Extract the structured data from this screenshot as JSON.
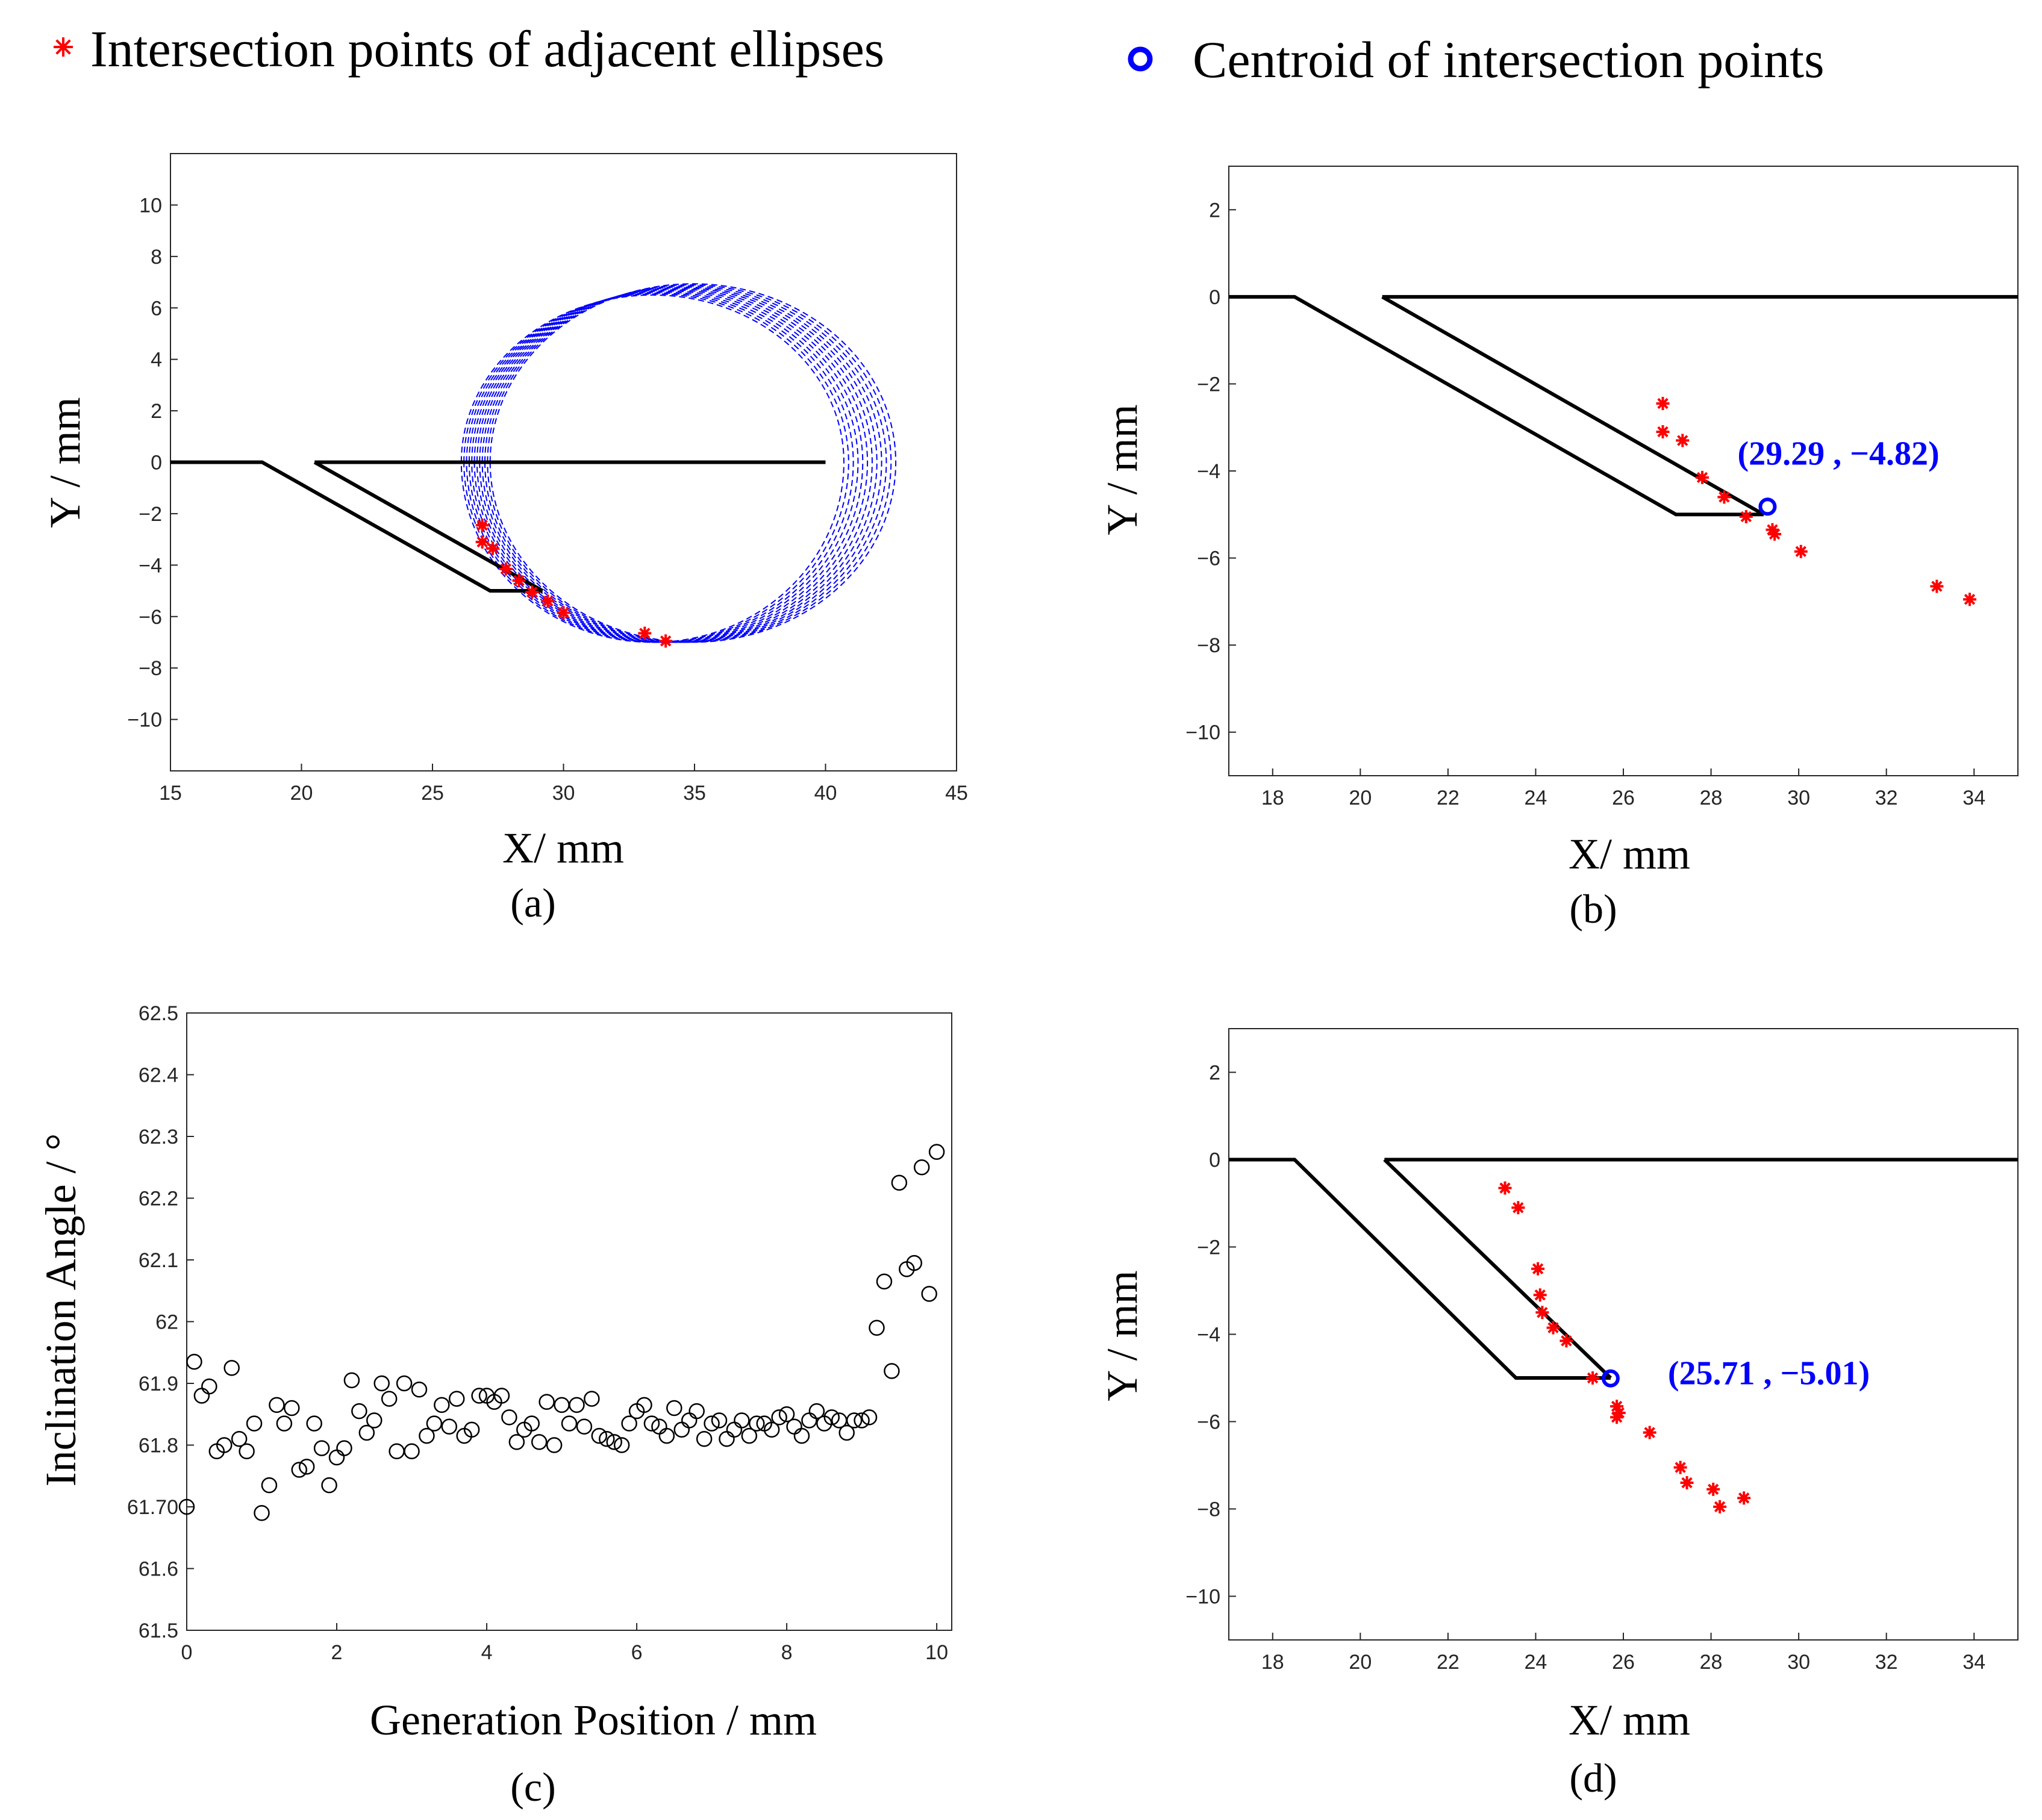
{
  "legend": {
    "intersections_label": "Intersection points of adjacent ellipses",
    "centroid_label": "Centroid of intersection points",
    "star_color": "#ff0000",
    "centroid_color": "#0000ff"
  },
  "chart_data": [
    {
      "id": "a",
      "type": "line",
      "caption": "(a)",
      "xlabel": "X/ mm",
      "ylabel": "Y / mm",
      "xlim": [
        15,
        45
      ],
      "ylim": [
        -12,
        12
      ],
      "xticks": [
        15,
        20,
        25,
        30,
        35,
        40,
        45
      ],
      "yticks": [
        -10,
        -8,
        -6,
        -4,
        -2,
        0,
        2,
        4,
        6,
        8,
        10
      ],
      "tool_outline": [
        [
          [
            15,
            0
          ],
          [
            18.5,
            0
          ],
          [
            27.2,
            -5
          ],
          [
            29.2,
            -5
          ]
        ],
        [
          [
            20.5,
            0
          ],
          [
            40,
            0
          ]
        ],
        [
          [
            20.5,
            0
          ],
          [
            29.2,
            -5
          ]
        ]
      ],
      "ellipses": {
        "count": 12,
        "center_x_start": 33.4,
        "center_x_step": 0.14,
        "center_y": 0,
        "rx_start": 7.3,
        "rx_step": 0.04,
        "ry_top_start": 6.5,
        "ry_top_step": 0.04,
        "ry_bottom": 7.0,
        "color": "#0000ff"
      },
      "intersection_points": [
        [
          26.9,
          -2.45
        ],
        [
          26.9,
          -3.1
        ],
        [
          27.3,
          -3.35
        ],
        [
          27.8,
          -4.15
        ],
        [
          28.3,
          -4.6
        ],
        [
          28.8,
          -5.05
        ],
        [
          29.4,
          -5.4
        ],
        [
          30.0,
          -5.85
        ],
        [
          33.1,
          -6.65
        ],
        [
          33.9,
          -6.95
        ]
      ]
    },
    {
      "id": "b",
      "type": "line",
      "caption": "(b)",
      "xlabel": "X/ mm",
      "ylabel": "Y / mm",
      "xlim": [
        17,
        35
      ],
      "ylim": [
        -11,
        3
      ],
      "xticks": [
        18,
        20,
        22,
        24,
        26,
        28,
        30,
        32,
        34
      ],
      "yticks": [
        -10,
        -8,
        -6,
        -4,
        -2,
        0,
        2
      ],
      "tool_outline": [
        [
          [
            17,
            0
          ],
          [
            18.5,
            0
          ],
          [
            27.2,
            -5
          ],
          [
            29.2,
            -5
          ]
        ],
        [
          [
            20.5,
            0
          ],
          [
            35,
            0
          ]
        ],
        [
          [
            20.5,
            0
          ],
          [
            29.2,
            -5
          ]
        ]
      ],
      "intersection_points": [
        [
          26.9,
          -2.45
        ],
        [
          26.9,
          -3.1
        ],
        [
          27.35,
          -3.3
        ],
        [
          27.8,
          -4.15
        ],
        [
          28.3,
          -4.6
        ],
        [
          28.8,
          -5.05
        ],
        [
          29.4,
          -5.35
        ],
        [
          29.45,
          -5.45
        ],
        [
          30.05,
          -5.85
        ],
        [
          33.15,
          -6.65
        ],
        [
          33.9,
          -6.95
        ]
      ],
      "centroid": [
        29.29,
        -4.82
      ],
      "centroid_label": "(29.29 , −4.82)"
    },
    {
      "id": "c",
      "type": "scatter",
      "caption": "(c)",
      "xlabel": "Generation Position / mm",
      "ylabel": "Inclination Angle / °",
      "xlim": [
        0,
        10.2
      ],
      "ylim": [
        61.5,
        62.5
      ],
      "xticks": [
        0,
        2,
        4,
        6,
        8,
        10
      ],
      "yticks": [
        61.5,
        61.6,
        61.7,
        61.8,
        61.9,
        62,
        62.1,
        62.2,
        62.3,
        62.4,
        62.5
      ],
      "ytick_labels": [
        "61.5",
        "61.6",
        "61.70",
        "61.8",
        "61.9",
        "62",
        "62.1",
        "62.2",
        "62.3",
        "62.4",
        "62.5"
      ],
      "x": [
        0.0,
        0.1,
        0.2,
        0.3,
        0.4,
        0.5,
        0.6,
        0.7,
        0.8,
        0.9,
        1.0,
        1.1,
        1.2,
        1.3,
        1.4,
        1.5,
        1.6,
        1.7,
        1.8,
        1.9,
        2.0,
        2.1,
        2.2,
        2.3,
        2.4,
        2.5,
        2.6,
        2.7,
        2.8,
        2.9,
        3.0,
        3.1,
        3.2,
        3.3,
        3.4,
        3.5,
        3.6,
        3.7,
        3.8,
        3.9,
        4.0,
        4.1,
        4.2,
        4.3,
        4.4,
        4.5,
        4.6,
        4.7,
        4.8,
        4.9,
        5.0,
        5.1,
        5.2,
        5.3,
        5.4,
        5.5,
        5.6,
        5.7,
        5.8,
        5.9,
        6.0,
        6.1,
        6.2,
        6.3,
        6.4,
        6.5,
        6.6,
        6.7,
        6.8,
        6.9,
        7.0,
        7.1,
        7.2,
        7.3,
        7.4,
        7.5,
        7.6,
        7.7,
        7.8,
        7.9,
        8.0,
        8.1,
        8.2,
        8.3,
        8.4,
        8.5,
        8.6,
        8.7,
        8.8,
        8.9,
        9.0,
        9.1,
        9.2,
        9.3,
        9.4,
        9.5,
        9.6,
        9.7,
        9.8,
        9.9,
        10.0
      ],
      "y": [
        61.7,
        61.935,
        61.88,
        61.895,
        61.79,
        61.8,
        61.925,
        61.81,
        61.79,
        61.835,
        61.69,
        61.735,
        61.865,
        61.835,
        61.86,
        61.76,
        61.765,
        61.835,
        61.795,
        61.735,
        61.78,
        61.795,
        61.905,
        61.855,
        61.82,
        61.84,
        61.9,
        61.875,
        61.79,
        61.9,
        61.79,
        61.89,
        61.815,
        61.835,
        61.865,
        61.83,
        61.875,
        61.815,
        61.825,
        61.88,
        61.88,
        61.87,
        61.88,
        61.845,
        61.805,
        61.825,
        61.835,
        61.805,
        61.87,
        61.8,
        61.865,
        61.835,
        61.865,
        61.83,
        61.875,
        61.815,
        61.81,
        61.805,
        61.8,
        61.835,
        61.855,
        61.865,
        61.835,
        61.83,
        61.815,
        61.86,
        61.825,
        61.84,
        61.855,
        61.81,
        61.835,
        61.84,
        61.81,
        61.825,
        61.84,
        61.815,
        61.835,
        61.835,
        61.825,
        61.845,
        61.85,
        61.83,
        61.815,
        61.84,
        61.855,
        61.835,
        61.845,
        61.84,
        61.82,
        61.84,
        61.84,
        61.845,
        61.99,
        62.065,
        61.92,
        62.225,
        62.085,
        62.095,
        62.25,
        62.045,
        62.275
      ]
    },
    {
      "id": "d",
      "type": "line",
      "caption": "(d)",
      "xlabel": "X/ mm",
      "ylabel": "Y / mm",
      "xlim": [
        17,
        35
      ],
      "ylim": [
        -11,
        3
      ],
      "xticks": [
        18,
        20,
        22,
        24,
        26,
        28,
        30,
        32,
        34
      ],
      "yticks": [
        -10,
        -8,
        -6,
        -4,
        -2,
        0,
        2
      ],
      "tool_outline": [
        [
          [
            17,
            0
          ],
          [
            18.5,
            0
          ],
          [
            23.55,
            -5
          ],
          [
            25.71,
            -5
          ]
        ],
        [
          [
            20.55,
            0
          ],
          [
            35,
            0
          ]
        ],
        [
          [
            20.55,
            0
          ],
          [
            25.71,
            -5
          ]
        ]
      ],
      "intersection_points": [
        [
          23.3,
          -0.65
        ],
        [
          23.6,
          -1.1
        ],
        [
          24.05,
          -2.5
        ],
        [
          24.1,
          -3.1
        ],
        [
          24.15,
          -3.5
        ],
        [
          24.4,
          -3.85
        ],
        [
          24.7,
          -4.15
        ],
        [
          25.3,
          -5.0
        ],
        [
          25.85,
          -5.65
        ],
        [
          25.9,
          -5.8
        ],
        [
          25.85,
          -5.9
        ],
        [
          26.6,
          -6.25
        ],
        [
          27.3,
          -7.05
        ],
        [
          27.45,
          -7.4
        ],
        [
          28.05,
          -7.55
        ],
        [
          28.2,
          -7.95
        ],
        [
          28.75,
          -7.75
        ]
      ],
      "centroid": [
        25.71,
        -5.01
      ],
      "centroid_label": "(25.71 , −5.01)"
    }
  ]
}
